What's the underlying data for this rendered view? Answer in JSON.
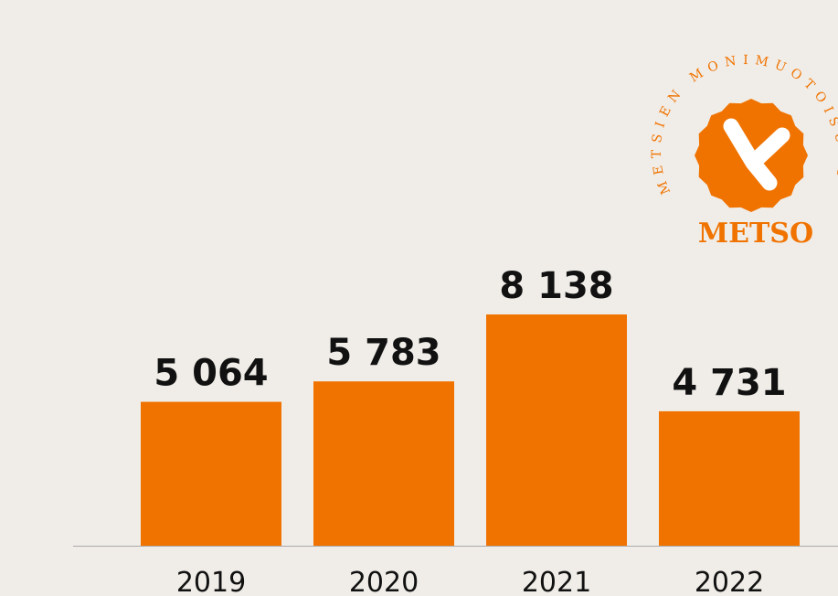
{
  "chart_data": {
    "type": "bar",
    "categories": [
      "2019",
      "2020",
      "2021",
      "2022"
    ],
    "values": [
      5064,
      5783,
      8138,
      4731
    ],
    "value_labels": [
      "5 064",
      "5 783",
      "8 138",
      "4 731"
    ],
    "color": "#f07300",
    "logo": {
      "name": "METSO",
      "ring_text": "METSIEN MONIMUOTOISUUS"
    }
  }
}
